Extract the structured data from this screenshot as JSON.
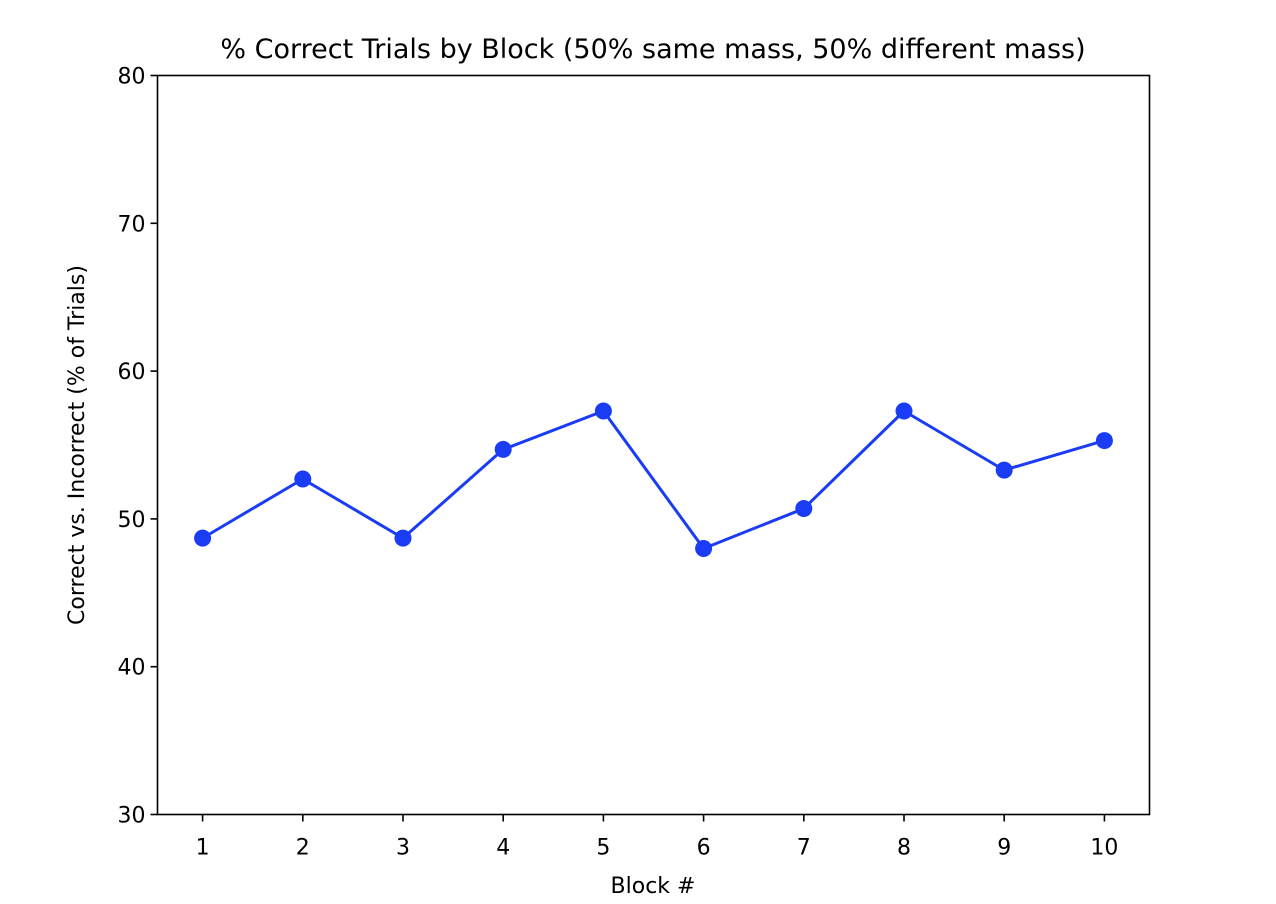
{
  "chart_data": {
    "type": "line",
    "title": "% Correct Trials by Block (50% same mass, 50% different mass)",
    "xlabel": "Block #",
    "ylabel": "Correct vs. Incorrect (% of Trials)",
    "x": [
      1,
      2,
      3,
      4,
      5,
      6,
      7,
      8,
      9,
      10
    ],
    "x_tick_labels": [
      "1",
      "2",
      "3",
      "4",
      "5",
      "6",
      "7",
      "8",
      "9",
      "10"
    ],
    "xlim": [
      0.55,
      10.45
    ],
    "ylim": [
      30,
      80
    ],
    "y_ticks": [
      30,
      40,
      50,
      60,
      70,
      80
    ],
    "y_tick_labels": [
      "30",
      "40",
      "50",
      "60",
      "70",
      "80"
    ],
    "grid": false,
    "series": [
      {
        "values": [
          48.7,
          52.7,
          48.7,
          54.7,
          57.3,
          48.0,
          50.7,
          57.3,
          53.3,
          55.3
        ],
        "color": "#1a3cf5",
        "marker": "circle"
      }
    ]
  }
}
